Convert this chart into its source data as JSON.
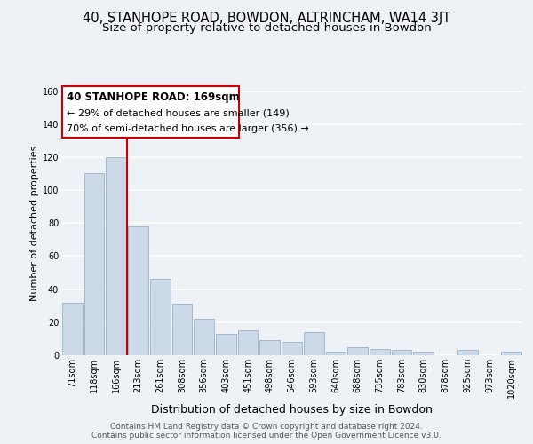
{
  "title": "40, STANHOPE ROAD, BOWDON, ALTRINCHAM, WA14 3JT",
  "subtitle": "Size of property relative to detached houses in Bowdon",
  "xlabel": "Distribution of detached houses by size in Bowdon",
  "ylabel": "Number of detached properties",
  "bar_labels": [
    "71sqm",
    "118sqm",
    "166sqm",
    "213sqm",
    "261sqm",
    "308sqm",
    "356sqm",
    "403sqm",
    "451sqm",
    "498sqm",
    "546sqm",
    "593sqm",
    "640sqm",
    "688sqm",
    "735sqm",
    "783sqm",
    "830sqm",
    "878sqm",
    "925sqm",
    "973sqm",
    "1020sqm"
  ],
  "bar_values": [
    32,
    110,
    120,
    78,
    46,
    31,
    22,
    13,
    15,
    9,
    8,
    14,
    2,
    5,
    4,
    3,
    2,
    0,
    3,
    0,
    2
  ],
  "bar_color": "#ccd9e8",
  "bar_edge_color": "#9ab0c8",
  "vline_color": "#cc0000",
  "annotation_title": "40 STANHOPE ROAD: 169sqm",
  "annotation_line1": "← 29% of detached houses are smaller (149)",
  "annotation_line2": "70% of semi-detached houses are larger (356) →",
  "annotation_box_color": "#ffffff",
  "annotation_box_edge": "#cc0000",
  "ylim": [
    0,
    160
  ],
  "yticks": [
    0,
    20,
    40,
    60,
    80,
    100,
    120,
    140,
    160
  ],
  "footer_line1": "Contains HM Land Registry data © Crown copyright and database right 2024.",
  "footer_line2": "Contains public sector information licensed under the Open Government Licence v3.0.",
  "bg_color": "#eef2f7",
  "plot_bg_color": "#eef2f7",
  "grid_color": "#ffffff",
  "title_fontsize": 10.5,
  "subtitle_fontsize": 9.5,
  "ylabel_fontsize": 8,
  "xlabel_fontsize": 9,
  "tick_fontsize": 7,
  "footer_fontsize": 6.5
}
